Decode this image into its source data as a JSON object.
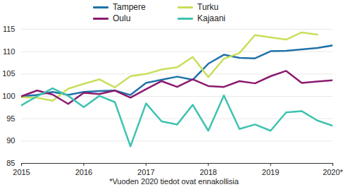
{
  "chart_data": {
    "type": "line",
    "caption": "*Vuoden 2020 tiedot ovat ennakollisia",
    "x": [
      2015,
      2015.25,
      2015.5,
      2015.75,
      2016,
      2016.25,
      2016.5,
      2016.75,
      2017,
      2017.25,
      2017.5,
      2017.75,
      2018,
      2018.25,
      2018.5,
      2018.75,
      2019,
      2019.25,
      2019.5,
      2019.75,
      2020
    ],
    "series": [
      {
        "name": "Tampere",
        "color": "#1f72a8",
        "values": [
          100,
          100.3,
          101,
          100.3,
          101,
          101.2,
          101.3,
          100.3,
          103,
          103.7,
          104.4,
          103.7,
          107.3,
          109.3,
          108.6,
          108.5,
          110.1,
          110.2,
          110.5,
          110.8,
          111.4
        ]
      },
      {
        "name": "Turku",
        "color": "#c8df5c",
        "values": [
          99.8,
          99.7,
          99,
          101.7,
          102.8,
          103.8,
          102,
          104.5,
          105,
          106,
          106.5,
          108.8,
          104.3,
          108.4,
          109.7,
          113.7,
          113.2,
          112.7,
          114.3,
          113.8,
          null
        ]
      },
      {
        "name": "Oulu",
        "color": "#8b1a6f",
        "values": [
          100,
          101.3,
          100.4,
          98.3,
          100.8,
          100.5,
          101.3,
          99.7,
          101.6,
          103.4,
          102.1,
          103.8,
          102.3,
          102.1,
          103.4,
          102.9,
          104.5,
          105.7,
          103,
          103.3,
          103.6
        ]
      },
      {
        "name": "Kajaani",
        "color": "#3ec2b0",
        "values": [
          98,
          100,
          101.8,
          100.1,
          97.6,
          100.1,
          98.7,
          88.8,
          98.4,
          94.4,
          93.7,
          98.1,
          92.3,
          100.2,
          92.7,
          93.7,
          92.3,
          96.4,
          96.7,
          94.6,
          93.4
        ]
      }
    ],
    "xlim": [
      2015,
      2020
    ],
    "xticks": [
      2015,
      2016,
      2017,
      2018,
      2019,
      {
        "value": 2020,
        "label": "2020*"
      }
    ],
    "ylim": [
      85,
      115
    ],
    "yticks": [
      85,
      90,
      95,
      100,
      105,
      110,
      115
    ],
    "grid": true
  }
}
